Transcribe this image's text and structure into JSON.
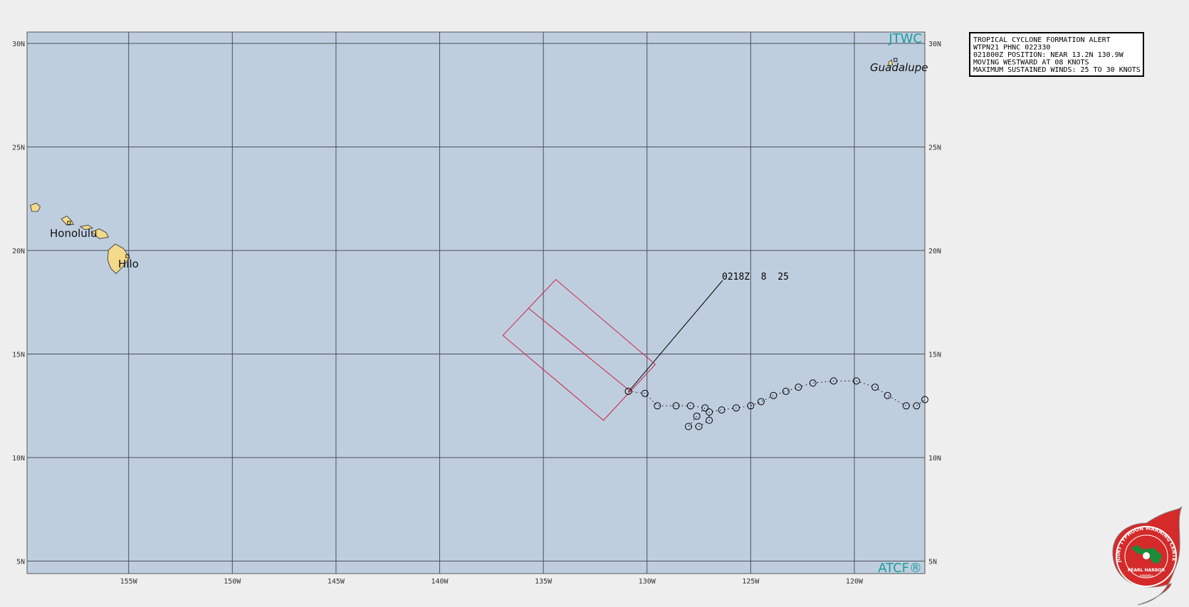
{
  "chart_data": {
    "type": "track-map",
    "corner_labels": [
      "JTWC",
      "ATCF®"
    ],
    "xlim": [
      -159.9,
      -116.6
    ],
    "ylim": [
      4.4,
      30.55
    ],
    "xticks": [
      {
        "value": -155,
        "label": "155W"
      },
      {
        "value": -150,
        "label": "150W"
      },
      {
        "value": -145,
        "label": "145W"
      },
      {
        "value": -140,
        "label": "140W"
      },
      {
        "value": -135,
        "label": "135W"
      },
      {
        "value": -130,
        "label": "130W"
      },
      {
        "value": -125,
        "label": "125W"
      },
      {
        "value": -120,
        "label": "120W"
      }
    ],
    "yticks": [
      {
        "value": 5,
        "label": "5N"
      },
      {
        "value": 10,
        "label": "10N"
      },
      {
        "value": 15,
        "label": "15N"
      },
      {
        "value": 20,
        "label": "20N"
      },
      {
        "value": 25,
        "label": "25N"
      },
      {
        "value": 30,
        "label": "30N"
      }
    ],
    "grid": true,
    "places": [
      "Honolulu",
      "Hilo",
      "Guadalupe"
    ],
    "track": {
      "color": "#000000",
      "x": [
        -130.9,
        -130.1,
        -129.5,
        -128.6,
        -127.9,
        -127.2,
        -127.6,
        -128.0,
        -127.5,
        -127.0,
        -127.0,
        -126.4,
        -125.7,
        -125.0,
        -124.5,
        -123.9,
        -123.3,
        -122.7,
        -122.0,
        -121.0,
        -119.9,
        -119.0,
        -118.4,
        -117.5,
        -117.0,
        -116.6
      ],
      "y": [
        13.2,
        13.1,
        12.5,
        12.5,
        12.5,
        12.4,
        12.0,
        11.5,
        11.5,
        11.8,
        12.2,
        12.3,
        12.4,
        12.5,
        12.7,
        13.0,
        13.2,
        13.4,
        13.6,
        13.7,
        13.7,
        13.4,
        13.0,
        12.5,
        12.5,
        12.8
      ]
    },
    "alert_area": {
      "color": "#cc2244",
      "x": [
        -136.95,
        -134.4,
        -129.6,
        -132.1
      ],
      "y": [
        15.9,
        18.6,
        14.5,
        11.8
      ],
      "axis_x": [
        -135.7,
        -130.8
      ],
      "axis_y": [
        17.2,
        13.2
      ]
    },
    "position_label": "0218Z  8  25",
    "alert_text": [
      "TROPICAL CYCLONE FORMATION ALERT",
      "WTPN21 PHNC 022330",
      "021800Z POSITION: NEAR 13.2N 130.9W",
      "MOVING WESTWARD AT 08 KNOTS",
      "MAXIMUM SUSTAINED WINDS: 25 TO 30 KNOTS"
    ],
    "logo": {
      "ring": "JOINT TYPHOON WARNING CENTER",
      "place": "PEARL HARBOR",
      "state": "HAWAII"
    }
  }
}
